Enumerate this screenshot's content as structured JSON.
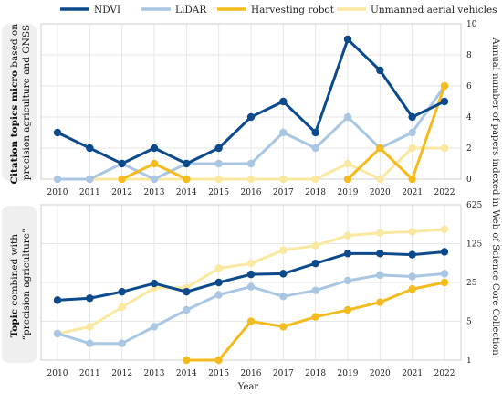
{
  "legend": [
    {
      "name": "NDVI",
      "color": "#0d4a8c"
    },
    {
      "name": "LiDAR",
      "color": "#a9c6e3"
    },
    {
      "name": "Harvesting robot",
      "color": "#f4bb1f"
    },
    {
      "name": "Unmanned aerial vehicles",
      "color": "#fbe8a0"
    }
  ],
  "chart_data": [
    {
      "type": "line",
      "side_label_bold": "Citation topics micro",
      "side_label_rest": " based on precision agriculture and GNSS",
      "x": [
        2010,
        2011,
        2012,
        2013,
        2014,
        2015,
        2016,
        2017,
        2018,
        2019,
        2020,
        2021,
        2022
      ],
      "ylim": [
        0,
        10
      ],
      "yticks": [
        "0",
        "2",
        "4",
        "6",
        "8",
        "10"
      ],
      "ytick_values": [
        0,
        2,
        4,
        6,
        8,
        10
      ],
      "grid": true,
      "series": [
        {
          "name": "Unmanned aerial vehicles",
          "color": "#fbe8a0",
          "values": [
            0,
            0,
            0,
            0,
            0,
            0,
            0,
            0,
            0,
            1,
            0,
            2,
            2
          ]
        },
        {
          "name": "LiDAR",
          "color": "#a9c6e3",
          "values": [
            0,
            0,
            1,
            0,
            1,
            1,
            1,
            3,
            2,
            4,
            2,
            3,
            6
          ]
        },
        {
          "name": "Harvesting robot",
          "color": "#f4bb1f",
          "values": [
            null,
            null,
            0,
            1,
            0,
            null,
            null,
            null,
            null,
            0,
            2,
            0,
            6
          ]
        },
        {
          "name": "NDVI",
          "color": "#0d4a8c",
          "values": [
            3,
            2,
            1,
            2,
            1,
            2,
            4,
            5,
            3,
            9,
            7,
            4,
            5
          ]
        }
      ]
    },
    {
      "type": "line",
      "side_label_bold": "Topic",
      "side_label_rest": " combined with “precision agriculture”",
      "x": [
        2010,
        2011,
        2012,
        2013,
        2014,
        2015,
        2016,
        2017,
        2018,
        2019,
        2020,
        2021,
        2022
      ],
      "yscale": "log",
      "ylim": [
        1,
        625
      ],
      "yticks": [
        "1",
        "5",
        "25",
        "125",
        "625"
      ],
      "ytick_values": [
        1,
        5,
        25,
        125,
        625
      ],
      "xlabel": "Year",
      "grid": true,
      "series": [
        {
          "name": "Unmanned aerial vehicles",
          "color": "#fbe8a0",
          "values": [
            3,
            4,
            9,
            20,
            20,
            45,
            55,
            95,
            115,
            175,
            195,
            205,
            225
          ]
        },
        {
          "name": "LiDAR",
          "color": "#a9c6e3",
          "values": [
            3,
            2,
            2,
            4,
            8,
            15,
            21,
            14,
            18,
            27,
            34,
            32,
            36
          ]
        },
        {
          "name": "Harvesting robot",
          "color": "#f4bb1f",
          "values": [
            null,
            null,
            null,
            null,
            1,
            1,
            5,
            4,
            6,
            8,
            11,
            19,
            25
          ]
        },
        {
          "name": "NDVI",
          "color": "#0d4a8c",
          "values": [
            12,
            13,
            17,
            24,
            17,
            25,
            35,
            36,
            55,
            83,
            83,
            79,
            89
          ]
        }
      ]
    }
  ],
  "right_axis_title": "Annual number of papers indexed in Web of Science Core Collection"
}
